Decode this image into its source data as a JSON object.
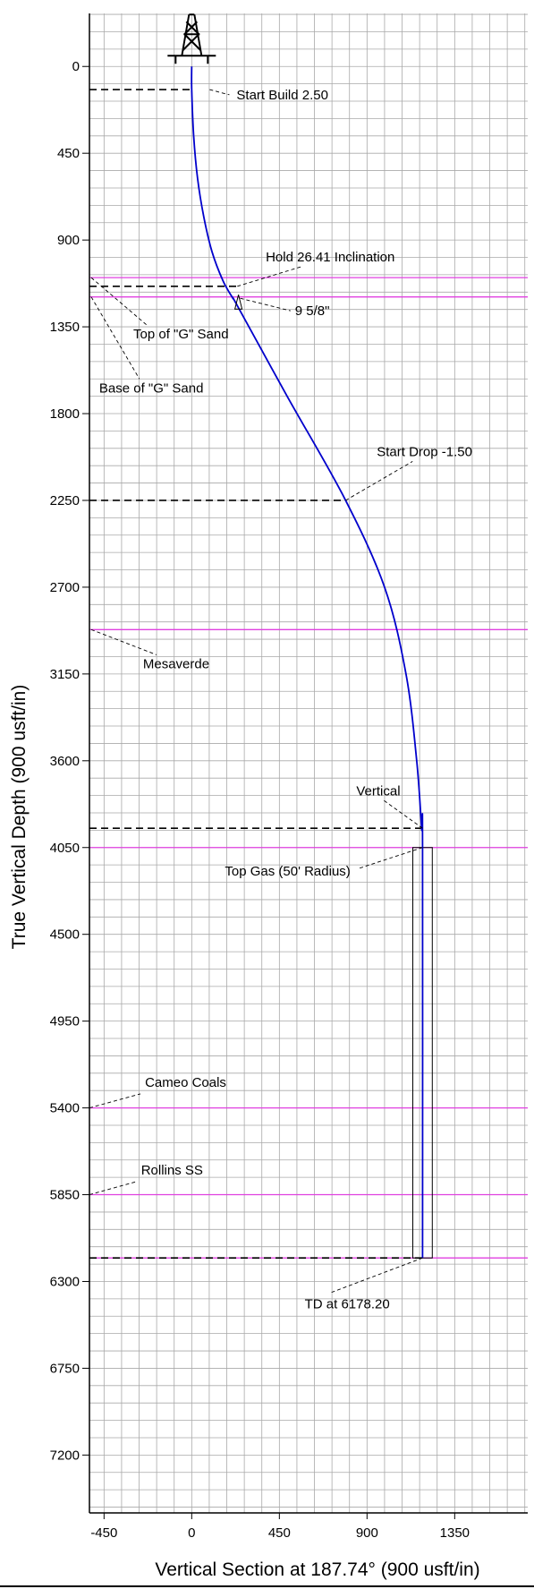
{
  "chart_data": {
    "type": "line",
    "xlabel": "Vertical Section at 187.74° (900 usft/in)",
    "ylabel": "True Vertical Depth (900 usft/in)",
    "xlim": [
      -525,
      1725
    ],
    "ylim": [
      7500,
      -275
    ],
    "x_ticks": [
      -450,
      0,
      450,
      900,
      1350
    ],
    "y_ticks": [
      0,
      450,
      900,
      1350,
      1800,
      2250,
      2700,
      3150,
      3600,
      4050,
      4500,
      4950,
      5400,
      5850,
      6300,
      6750,
      7200
    ],
    "grid": true,
    "colors": {
      "wellpath": "#0000cc",
      "formation": "#e040e0",
      "grid": "#a9a9a9",
      "axis": "#000000",
      "marker_line": "#000000"
    },
    "series": [
      {
        "name": "",
        "x": [
          0,
          0,
          10,
          30,
          62,
          104,
          160,
          210,
          234,
          490,
          785,
          990,
          1100,
          1155,
          1180,
          1185,
          1185
        ],
        "y": [
          0,
          120,
          360,
          580,
          780,
          960,
          1110,
          1200,
          1240,
          1710,
          2240,
          2700,
          3150,
          3600,
          3950,
          4050,
          6178
        ]
      }
    ],
    "formations": [
      {
        "label": "Top of \"G\" Sand",
        "tvd": 1095,
        "x_left": -525,
        "x_right": 1725,
        "label_pos": {
          "x": -300,
          "y": 1410
        }
      },
      {
        "label": "Base of \"G\" Sand",
        "tvd": 1195,
        "x_left": -525,
        "x_right": 1725,
        "label_pos": {
          "x": -475,
          "y": 1690
        }
      },
      {
        "label": "Mesaverde",
        "tvd": 2920,
        "x_left": -525,
        "x_right": 1725,
        "label_pos": {
          "x": -250,
          "y": 3120
        }
      },
      {
        "label": "Top Gas (50' Radius)",
        "tvd": 4050,
        "x_left": -525,
        "x_right": 1725,
        "label_pos": {
          "x": 170,
          "y": 4195
        }
      },
      {
        "label": "Cameo Coals",
        "tvd": 5400,
        "x_left": -525,
        "x_right": 1725,
        "label_pos": {
          "x": -240,
          "y": 5290
        }
      },
      {
        "label": "Rollins SS",
        "tvd": 5850,
        "x_left": -525,
        "x_right": 1725,
        "label_pos": {
          "x": -260,
          "y": 5745
        }
      },
      {
        "label": "",
        "tvd": 6178,
        "x_left": -525,
        "x_right": 1725
      }
    ],
    "markers": [
      {
        "label": "Start Build 2.50",
        "tvd": 120,
        "x_end": 0,
        "label_pos": {
          "x": 230,
          "y": 170
        }
      },
      {
        "label": "Hold 26.41 Inclination",
        "tvd": 1140,
        "x_end": 234,
        "label_pos": {
          "x": 380,
          "y": 1010
        }
      },
      {
        "label": "Start Drop -1.50",
        "tvd": 2250,
        "x_end": 790,
        "label_pos": {
          "x": 950,
          "y": 2020
        }
      },
      {
        "label": "Vertical",
        "tvd": 3950,
        "x_end": 1185,
        "label_pos": {
          "x": 845,
          "y": 3780
        }
      },
      {
        "label": "TD at 6178.20",
        "tvd": 6178,
        "x_end": 1185,
        "label_pos": {
          "x": 580,
          "y": 6440
        }
      }
    ],
    "casing": {
      "label": "9 5/8\"",
      "tvd": 1230,
      "x": 240,
      "label_pos": {
        "x": 530,
        "y": 1290
      }
    },
    "target_box": {
      "x_left": 1135,
      "x_right": 1235,
      "tvd_top": 4050,
      "tvd_bottom": 6178
    }
  }
}
